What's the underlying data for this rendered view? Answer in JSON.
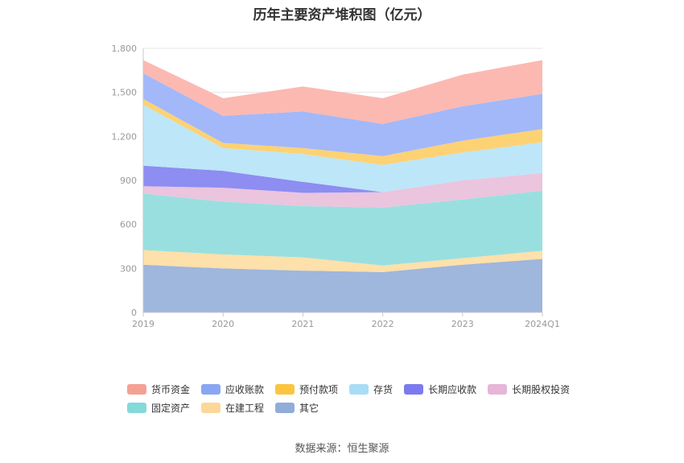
{
  "chart_data": {
    "type": "area",
    "stacked": true,
    "title": "历年主要资产堆积图（亿元）",
    "categories": [
      "2019",
      "2020",
      "2021",
      "2022",
      "2023",
      "2024Q1"
    ],
    "ylim": [
      0,
      1800
    ],
    "yticks": [
      "0",
      "300",
      "600",
      "900",
      "1,200",
      "1,500",
      "1,800"
    ],
    "grid": true,
    "legend_position": "bottom",
    "series": [
      {
        "name": "其它",
        "color": "#9fb6dd",
        "values": [
          325,
          300,
          285,
          275,
          325,
          365
        ]
      },
      {
        "name": "在建工程",
        "color": "#fde0aa",
        "values": [
          100,
          95,
          90,
          45,
          45,
          55
        ]
      },
      {
        "name": "固定资产",
        "color": "#9adfdf",
        "values": [
          385,
          360,
          350,
          395,
          400,
          410
        ]
      },
      {
        "name": "长期股权投资",
        "color": "#ebc4de",
        "values": [
          50,
          95,
          90,
          105,
          130,
          120
        ]
      },
      {
        "name": "长期应收款",
        "color": "#8d8df2",
        "values": [
          140,
          115,
          75,
          0,
          0,
          0
        ]
      },
      {
        "name": "存货",
        "color": "#bde6f8",
        "values": [
          415,
          155,
          190,
          185,
          190,
          210
        ]
      },
      {
        "name": "预付款项",
        "color": "#fdd274",
        "values": [
          40,
          35,
          40,
          60,
          80,
          90
        ]
      },
      {
        "name": "应收账款",
        "color": "#a3b8f8",
        "values": [
          175,
          185,
          250,
          220,
          235,
          240
        ]
      },
      {
        "name": "货币资金",
        "color": "#fbb9b2",
        "values": [
          90,
          120,
          170,
          175,
          215,
          230
        ]
      }
    ]
  },
  "legend": {
    "rows": [
      [
        {
          "name": "货币资金",
          "color": "#f4a195"
        },
        {
          "name": "应收账款",
          "color": "#8aa6f3"
        },
        {
          "name": "预付款项",
          "color": "#fbc540"
        },
        {
          "name": "存货",
          "color": "#a8ddf6"
        },
        {
          "name": "长期应收款",
          "color": "#7b7bef"
        },
        {
          "name": "长期股权投资",
          "color": "#e6b5d8"
        }
      ],
      [
        {
          "name": "固定资产",
          "color": "#84d9d9"
        },
        {
          "name": "在建工程",
          "color": "#fcd898"
        },
        {
          "name": "其它",
          "color": "#91acd9"
        }
      ]
    ]
  },
  "source": "数据来源：恒生聚源"
}
